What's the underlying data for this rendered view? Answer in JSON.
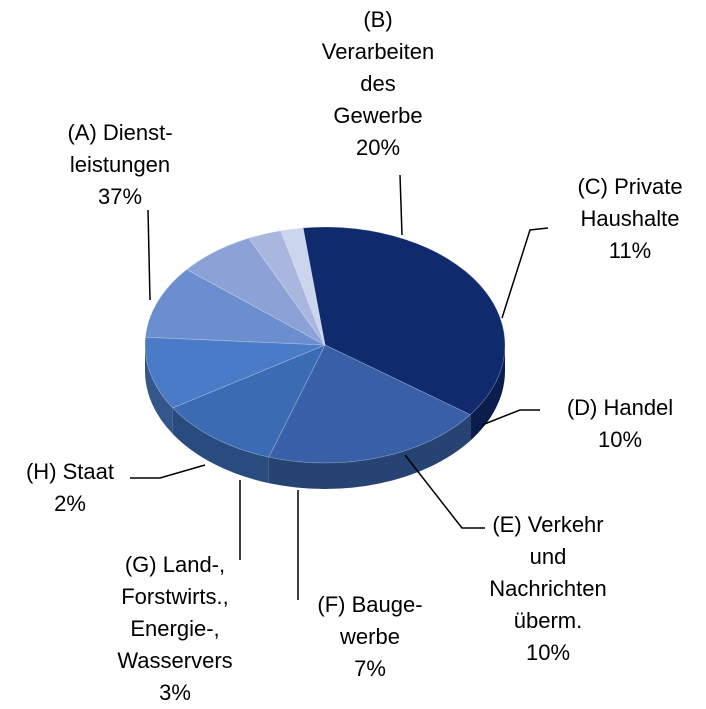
{
  "chart_data": {
    "type": "pie3d",
    "categories": [
      "(A) Dienst-\nleistungen",
      "(B)\nVerarbeiten\ndes\nGewerbe",
      "(C) Private\nHaushalte",
      "(D) Handel",
      "(E) Verkehr\nund\nNachrichten\nüberm.",
      "(F) Bauge-\nwerbe",
      "(G) Land-,\nForstwirts.,\nEnergie-,\nWasservers",
      "(H) Staat"
    ],
    "values": [
      37,
      20,
      11,
      10,
      10,
      7,
      3,
      2
    ],
    "value_labels": [
      "37%",
      "20%",
      "11%",
      "10%",
      "10%",
      "7%",
      "3%",
      "2%"
    ],
    "colors": [
      "#102a6e",
      "#3860a6",
      "#3b6bb3",
      "#4a7bc6",
      "#6a8ed0",
      "#8ca2d6",
      "#a9b7df",
      "#ccd5ee"
    ]
  }
}
